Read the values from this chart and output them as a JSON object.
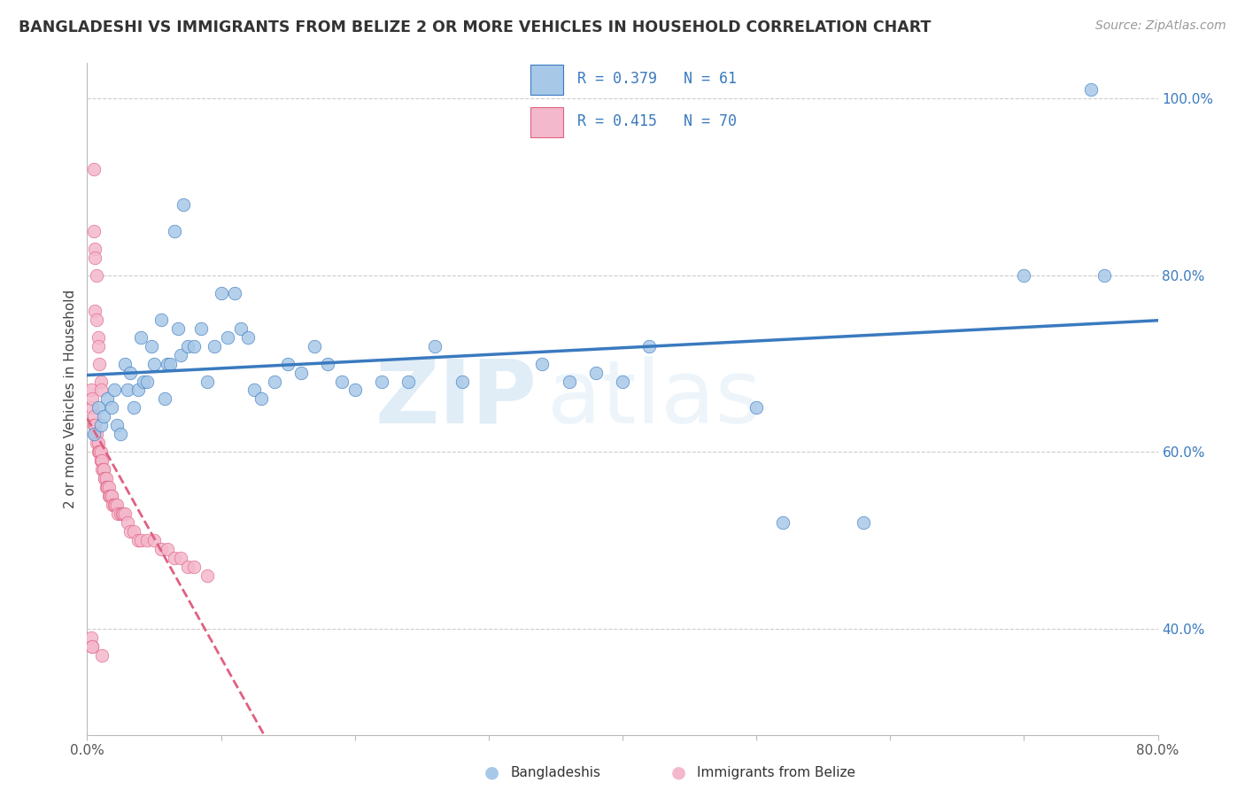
{
  "title": "BANGLADESHI VS IMMIGRANTS FROM BELIZE 2 OR MORE VEHICLES IN HOUSEHOLD CORRELATION CHART",
  "source": "Source: ZipAtlas.com",
  "ylabel": "2 or more Vehicles in Household",
  "x_min": 0.0,
  "x_max": 0.8,
  "y_min": 0.28,
  "y_max": 1.04,
  "x_ticks": [
    0.0,
    0.1,
    0.2,
    0.3,
    0.4,
    0.5,
    0.6,
    0.7,
    0.8
  ],
  "x_tick_labels": [
    "0.0%",
    "",
    "",
    "",
    "",
    "",
    "",
    "",
    "80.0%"
  ],
  "y_ticks": [
    0.4,
    0.6,
    0.8,
    1.0
  ],
  "y_tick_labels": [
    "40.0%",
    "60.0%",
    "80.0%",
    "100.0%"
  ],
  "blue_R": 0.379,
  "blue_N": 61,
  "pink_R": 0.415,
  "pink_N": 70,
  "blue_color": "#a8c8e8",
  "pink_color": "#f4b8cc",
  "blue_line_color": "#3a7abf",
  "pink_line_color": "#e06080",
  "grid_color": "#cccccc",
  "watermark_zip": "ZIP",
  "watermark_atlas": "atlas",
  "blue_scatter_x": [
    0.005,
    0.008,
    0.01,
    0.012,
    0.015,
    0.018,
    0.02,
    0.022,
    0.025,
    0.028,
    0.03,
    0.032,
    0.035,
    0.038,
    0.04,
    0.042,
    0.045,
    0.048,
    0.05,
    0.055,
    0.058,
    0.06,
    0.062,
    0.065,
    0.068,
    0.07,
    0.072,
    0.075,
    0.08,
    0.085,
    0.09,
    0.095,
    0.1,
    0.105,
    0.11,
    0.115,
    0.12,
    0.125,
    0.13,
    0.14,
    0.15,
    0.16,
    0.17,
    0.18,
    0.19,
    0.2,
    0.22,
    0.24,
    0.26,
    0.28,
    0.34,
    0.36,
    0.38,
    0.4,
    0.42,
    0.5,
    0.52,
    0.58,
    0.7,
    0.75,
    0.76
  ],
  "blue_scatter_y": [
    0.62,
    0.65,
    0.63,
    0.64,
    0.66,
    0.65,
    0.67,
    0.63,
    0.62,
    0.7,
    0.67,
    0.69,
    0.65,
    0.67,
    0.73,
    0.68,
    0.68,
    0.72,
    0.7,
    0.75,
    0.66,
    0.7,
    0.7,
    0.85,
    0.74,
    0.71,
    0.88,
    0.72,
    0.72,
    0.74,
    0.68,
    0.72,
    0.78,
    0.73,
    0.78,
    0.74,
    0.73,
    0.67,
    0.66,
    0.68,
    0.7,
    0.69,
    0.72,
    0.7,
    0.68,
    0.67,
    0.68,
    0.68,
    0.72,
    0.68,
    0.7,
    0.68,
    0.69,
    0.68,
    0.72,
    0.65,
    0.52,
    0.52,
    0.8,
    1.01,
    0.8
  ],
  "pink_scatter_x": [
    0.003,
    0.004,
    0.004,
    0.005,
    0.005,
    0.006,
    0.006,
    0.007,
    0.007,
    0.008,
    0.008,
    0.009,
    0.009,
    0.01,
    0.01,
    0.01,
    0.011,
    0.011,
    0.012,
    0.012,
    0.013,
    0.013,
    0.014,
    0.014,
    0.015,
    0.015,
    0.016,
    0.016,
    0.017,
    0.018,
    0.018,
    0.019,
    0.02,
    0.021,
    0.022,
    0.023,
    0.025,
    0.026,
    0.027,
    0.028,
    0.03,
    0.032,
    0.035,
    0.038,
    0.04,
    0.045,
    0.05,
    0.055,
    0.06,
    0.065,
    0.07,
    0.075,
    0.08,
    0.09,
    0.003,
    0.004,
    0.004,
    0.005,
    0.005,
    0.006,
    0.006,
    0.006,
    0.007,
    0.007,
    0.008,
    0.008,
    0.009,
    0.01,
    0.01,
    0.011
  ],
  "pink_scatter_y": [
    0.67,
    0.65,
    0.66,
    0.64,
    0.63,
    0.62,
    0.63,
    0.62,
    0.61,
    0.61,
    0.6,
    0.6,
    0.6,
    0.59,
    0.59,
    0.6,
    0.59,
    0.58,
    0.58,
    0.58,
    0.57,
    0.57,
    0.57,
    0.56,
    0.56,
    0.56,
    0.56,
    0.55,
    0.55,
    0.55,
    0.55,
    0.54,
    0.54,
    0.54,
    0.54,
    0.53,
    0.53,
    0.53,
    0.53,
    0.53,
    0.52,
    0.51,
    0.51,
    0.5,
    0.5,
    0.5,
    0.5,
    0.49,
    0.49,
    0.48,
    0.48,
    0.47,
    0.47,
    0.46,
    0.39,
    0.38,
    0.38,
    0.85,
    0.92,
    0.83,
    0.82,
    0.76,
    0.8,
    0.75,
    0.73,
    0.72,
    0.7,
    0.68,
    0.67,
    0.37
  ]
}
